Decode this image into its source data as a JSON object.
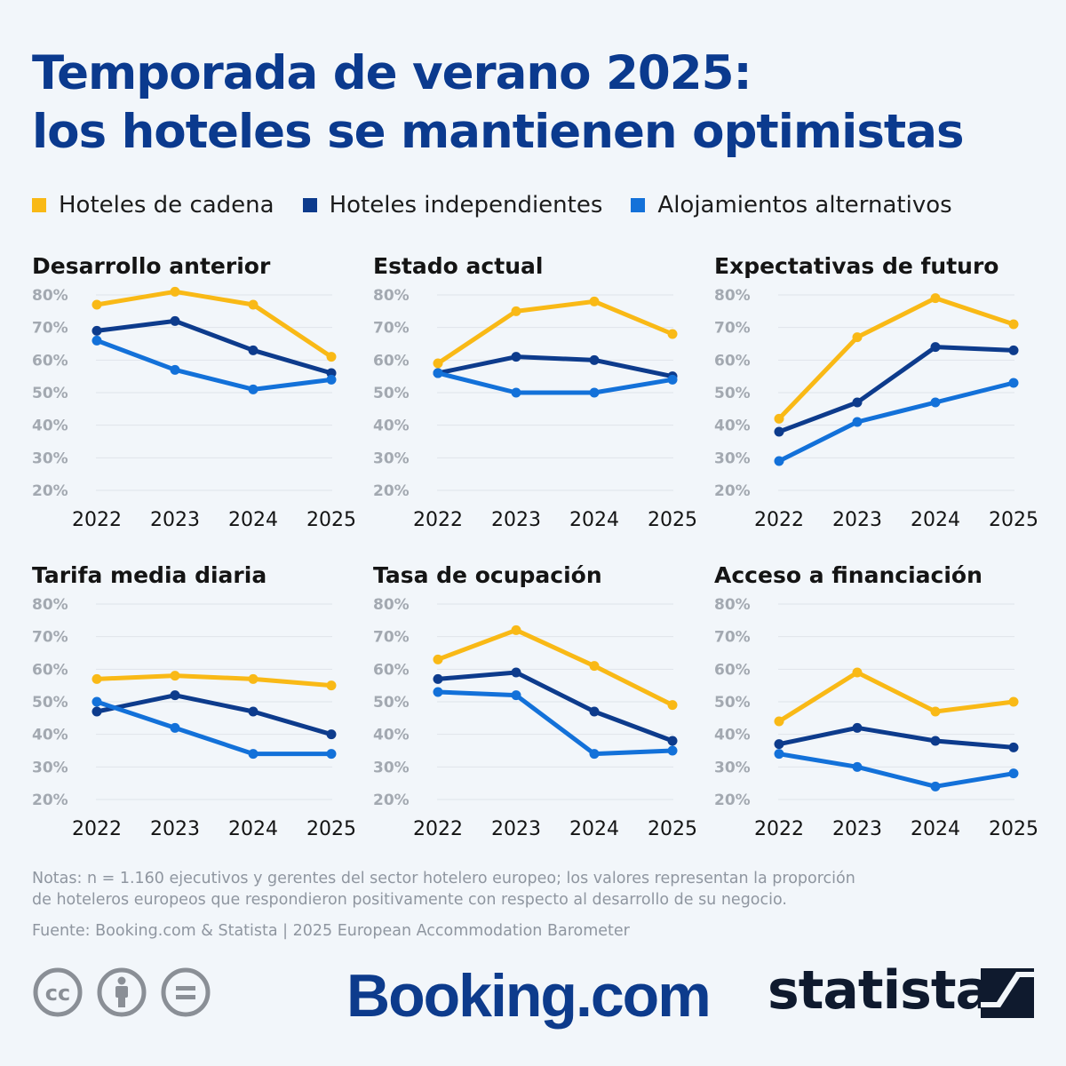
{
  "title_line1": "Temporada de verano 2025:",
  "title_line2": "los hoteles se mantienen optimistas",
  "legend": [
    {
      "label": "Hoteles de cadena",
      "color": "#f9b916"
    },
    {
      "label": "Hoteles independientes",
      "color": "#0d3b8c"
    },
    {
      "label": "Alojamientos alternativos",
      "color": "#1371d9"
    }
  ],
  "notes_line1": "Notas: n = 1.160 ejecutivos y gerentes del sector hotelero europeo; los valores representan la proporción",
  "notes_line2": "de hoteleros europeos que respondieron positivamente con respecto al desarrollo de su negocio.",
  "source": "Fuente: Booking.com & Statista | 2025 European Accommodation Barometer",
  "logos": {
    "booking": "Booking.com",
    "statista": "statista"
  },
  "icons": [
    "cc-icon",
    "attribution-icon",
    "no-derivatives-icon"
  ],
  "chart_data": [
    {
      "type": "line",
      "title": "Desarrollo anterior",
      "categories": [
        "2022",
        "2023",
        "2024",
        "2025"
      ],
      "ylim": [
        20,
        80
      ],
      "yticks": [
        "80%",
        "70%",
        "60%",
        "50%",
        "40%",
        "30%",
        "20%"
      ],
      "series": [
        {
          "name": "Hoteles de cadena",
          "values": [
            77,
            81,
            77,
            61
          ]
        },
        {
          "name": "Hoteles independientes",
          "values": [
            69,
            72,
            63,
            56
          ]
        },
        {
          "name": "Alojamientos alternativos",
          "values": [
            66,
            57,
            51,
            54
          ]
        }
      ]
    },
    {
      "type": "line",
      "title": "Estado actual",
      "categories": [
        "2022",
        "2023",
        "2024",
        "2025"
      ],
      "ylim": [
        20,
        80
      ],
      "yticks": [
        "80%",
        "70%",
        "60%",
        "50%",
        "40%",
        "30%",
        "20%"
      ],
      "series": [
        {
          "name": "Hoteles de cadena",
          "values": [
            59,
            75,
            78,
            68
          ]
        },
        {
          "name": "Hoteles independientes",
          "values": [
            56,
            61,
            60,
            55
          ]
        },
        {
          "name": "Alojamientos alternativos",
          "values": [
            56,
            50,
            50,
            54
          ]
        }
      ]
    },
    {
      "type": "line",
      "title": "Expectativas de futuro",
      "categories": [
        "2022",
        "2023",
        "2024",
        "2025"
      ],
      "ylim": [
        20,
        80
      ],
      "yticks": [
        "80%",
        "70%",
        "60%",
        "50%",
        "40%",
        "30%",
        "20%"
      ],
      "series": [
        {
          "name": "Hoteles de cadena",
          "values": [
            42,
            67,
            79,
            71
          ]
        },
        {
          "name": "Hoteles independientes",
          "values": [
            38,
            47,
            64,
            63
          ]
        },
        {
          "name": "Alojamientos alternativos",
          "values": [
            29,
            41,
            47,
            53
          ]
        }
      ]
    },
    {
      "type": "line",
      "title": "Tarifa media diaria",
      "categories": [
        "2022",
        "2023",
        "2024",
        "2025"
      ],
      "ylim": [
        20,
        80
      ],
      "yticks": [
        "80%",
        "70%",
        "60%",
        "50%",
        "40%",
        "30%",
        "20%"
      ],
      "series": [
        {
          "name": "Hoteles de cadena",
          "values": [
            57,
            58,
            57,
            55
          ]
        },
        {
          "name": "Hoteles independientes",
          "values": [
            47,
            52,
            47,
            40
          ]
        },
        {
          "name": "Alojamientos alternativos",
          "values": [
            50,
            42,
            34,
            34
          ]
        }
      ]
    },
    {
      "type": "line",
      "title": "Tasa de ocupación",
      "categories": [
        "2022",
        "2023",
        "2024",
        "2025"
      ],
      "ylim": [
        20,
        80
      ],
      "yticks": [
        "80%",
        "70%",
        "60%",
        "50%",
        "40%",
        "30%",
        "20%"
      ],
      "series": [
        {
          "name": "Hoteles de cadena",
          "values": [
            63,
            72,
            61,
            49
          ]
        },
        {
          "name": "Hoteles independientes",
          "values": [
            57,
            59,
            47,
            38
          ]
        },
        {
          "name": "Alojamientos alternativos",
          "values": [
            53,
            52,
            34,
            35
          ]
        }
      ]
    },
    {
      "type": "line",
      "title": "Acceso a financiación",
      "categories": [
        "2022",
        "2023",
        "2024",
        "2025"
      ],
      "ylim": [
        20,
        80
      ],
      "yticks": [
        "80%",
        "70%",
        "60%",
        "50%",
        "40%",
        "30%",
        "20%"
      ],
      "series": [
        {
          "name": "Hoteles de cadena",
          "values": [
            44,
            59,
            47,
            50
          ]
        },
        {
          "name": "Hoteles independientes",
          "values": [
            37,
            42,
            38,
            36
          ]
        },
        {
          "name": "Alojamientos alternativos",
          "values": [
            34,
            30,
            24,
            28
          ]
        }
      ]
    }
  ]
}
